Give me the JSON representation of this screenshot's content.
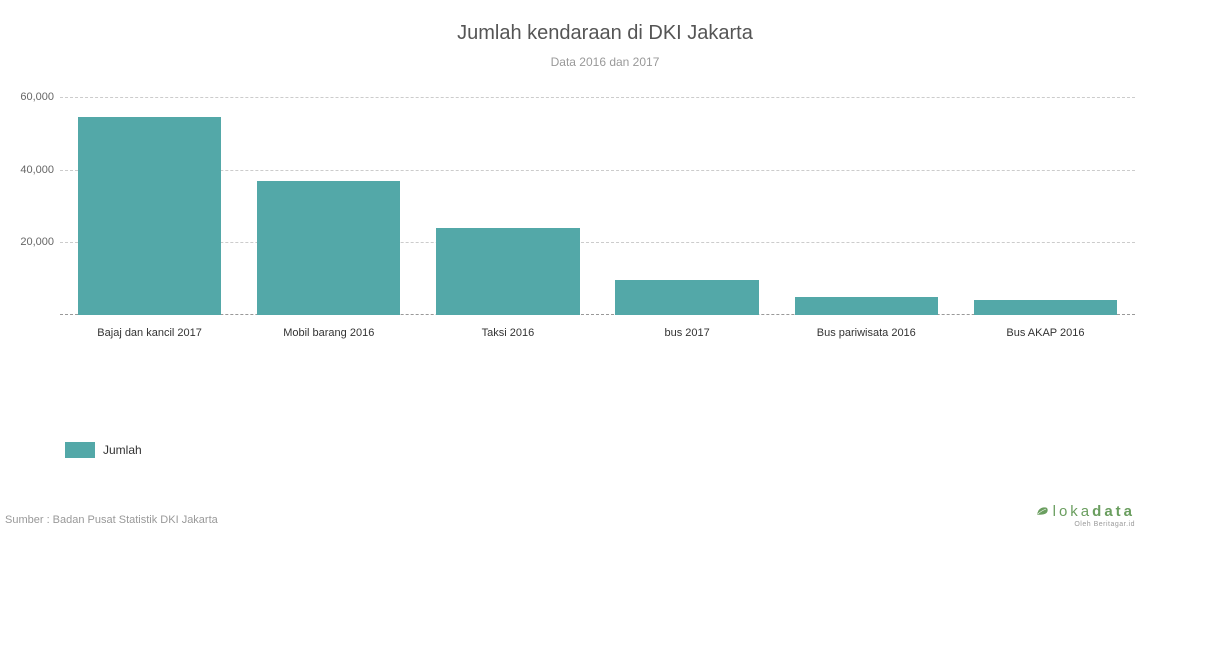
{
  "chart": {
    "type": "bar",
    "title": "Jumlah kendaraan di DKI Jakarta",
    "subtitle": "Data 2016 dan 2017",
    "title_fontsize": 20,
    "title_color": "#555555",
    "subtitle_fontsize": 12,
    "subtitle_color": "#999999",
    "background_color": "#ffffff",
    "grid_color": "#cccccc",
    "grid_style": "dashed",
    "bar_color": "#53a8a8",
    "bar_width_ratio": 0.8,
    "categories": [
      "Bajaj dan kancil 2017",
      "Mobil barang 2016",
      "Taksi 2016",
      "bus 2017",
      "Bus pariwisata 2016",
      "Bus AKAP 2016"
    ],
    "values": [
      54500,
      36800,
      24000,
      9500,
      5000,
      4000
    ],
    "ylim": [
      0,
      60000
    ],
    "yticks": [
      20000,
      40000,
      60000
    ],
    "ytick_labels": [
      "20,000",
      "40,000",
      "60,000"
    ],
    "xlabel_fontsize": 11,
    "xlabel_color": "#333333",
    "ytick_fontsize": 11,
    "ytick_color": "#666666"
  },
  "legend": {
    "label": "Jumlah",
    "swatch_color": "#53a8a8",
    "fontsize": 12
  },
  "source": {
    "text": "Sumber : Badan Pusat Statistik DKI Jakarta",
    "fontsize": 11,
    "color": "#999999"
  },
  "brand": {
    "name_light": "loka",
    "name_bold": "data",
    "tagline": "Oleh Beritagar.id",
    "color": "#6a9e5f"
  }
}
